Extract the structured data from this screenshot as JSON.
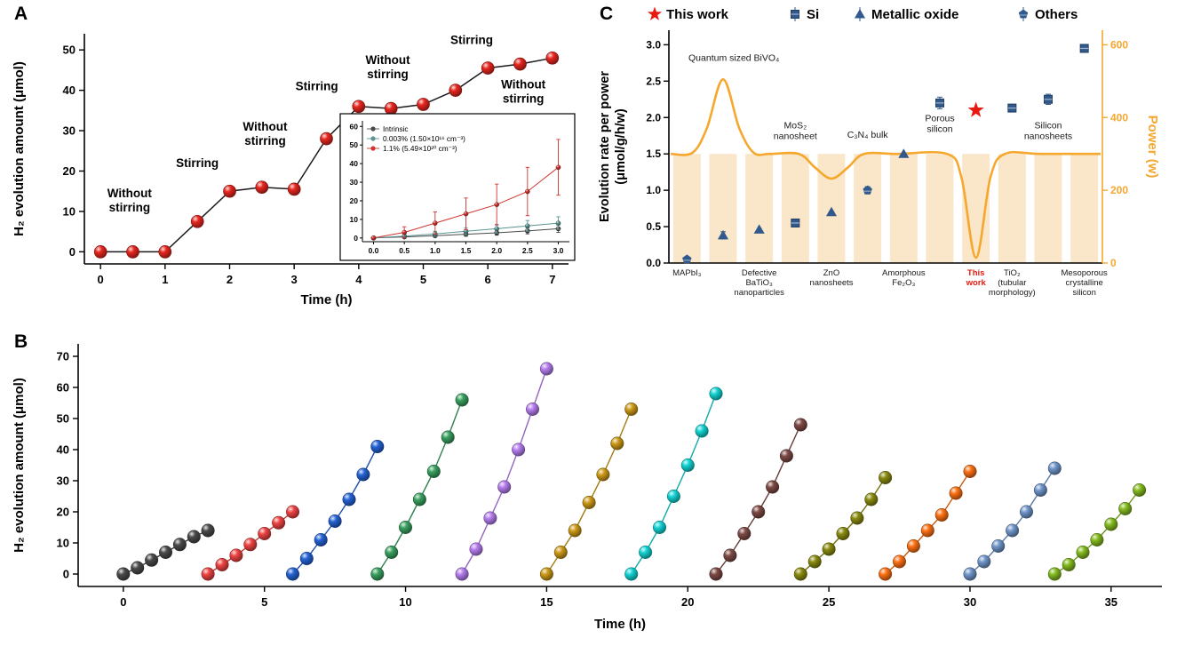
{
  "page": {
    "background": "#ffffff"
  },
  "chart_data": [
    {
      "panel_label": "A",
      "type": "line",
      "xlabel": "Time (h)",
      "ylabel": "H₂ evolution amount (μmol)",
      "xlim": [
        -0.25,
        7.25
      ],
      "ylim": [
        -3,
        54
      ],
      "xticks": [
        "0",
        "1",
        "2",
        "3",
        "4",
        "5",
        "6",
        "7"
      ],
      "xtick_vals": [
        0,
        1,
        2,
        3,
        4,
        5,
        6,
        7
      ],
      "yticks": [
        "0",
        "10",
        "20",
        "30",
        "40",
        "50"
      ],
      "ytick_vals": [
        0,
        10,
        20,
        30,
        40,
        50
      ],
      "point_color": "#e8261f",
      "line_color": "#1a1a1a",
      "x": [
        0,
        0.5,
        1,
        1.5,
        2,
        2.5,
        3,
        3.5,
        4,
        4.5,
        5,
        5.5,
        6,
        6.5,
        7
      ],
      "y": [
        0,
        0,
        0,
        7.5,
        15,
        16,
        15.5,
        28,
        36,
        35.5,
        36.5,
        40,
        45.5,
        46.5,
        48
      ],
      "annotations": [
        {
          "text": "Without\nstirring",
          "x": 0.45,
          "y": 13.5
        },
        {
          "text": "Stirring",
          "x": 1.5,
          "y": 21
        },
        {
          "text": "Without\nstirring",
          "x": 2.55,
          "y": 30
        },
        {
          "text": "Stirring",
          "x": 3.35,
          "y": 40
        },
        {
          "text": "Without\nstirring",
          "x": 4.45,
          "y": 46.5
        },
        {
          "text": "Stirring",
          "x": 5.75,
          "y": 51.5
        },
        {
          "text": "Without\nstirring",
          "x": 6.55,
          "y": 40.5
        }
      ],
      "inset": {
        "xticks": [
          "0.0",
          "0.5",
          "1.0",
          "1.5",
          "2.0",
          "2.5",
          "3.0"
        ],
        "xtick_vals": [
          0,
          0.5,
          1,
          1.5,
          2,
          2.5,
          3
        ],
        "yticks": [
          "0",
          "10",
          "20",
          "30",
          "40",
          "50",
          "60"
        ],
        "ytick_vals": [
          0,
          10,
          20,
          30,
          40,
          50,
          60
        ],
        "xlim": [
          -0.18,
          3.18
        ],
        "ylim": [
          -2,
          63
        ],
        "series": [
          {
            "name": "Intrinsic",
            "color": "#4a4a4a",
            "x": [
              0,
              0.5,
              1,
              1.5,
              2,
              2.5,
              3
            ],
            "y": [
              0,
              0.6,
              1.2,
              2,
              2.8,
              3.8,
              5
            ],
            "err": [
              0.3,
              0.5,
              0.8,
              1,
              1.3,
              1.6,
              2
            ]
          },
          {
            "name": "0.003% (1.50×10¹⁶ cm⁻³)",
            "color": "#5b9493",
            "x": [
              0,
              0.5,
              1,
              1.5,
              2,
              2.5,
              3
            ],
            "y": [
              0,
              1,
              2.2,
              3.6,
              5,
              6.5,
              8
            ],
            "err": [
              0.4,
              0.9,
              1.4,
              1.9,
              2.4,
              2.9,
              3.4
            ]
          },
          {
            "name": "1.1% (5.49×10²⁰ cm⁻³)",
            "color": "#cf3430",
            "x": [
              0,
              0.5,
              1,
              1.5,
              2,
              2.5,
              3
            ],
            "y": [
              0,
              3,
              8,
              13,
              18,
              25,
              38
            ],
            "err": [
              0.6,
              3,
              6,
              8.5,
              11,
              13,
              15
            ]
          }
        ]
      }
    },
    {
      "panel_label": "B",
      "type": "line",
      "xlabel": "Time (h)",
      "ylabel": "H₂ evolution amount (μmol)",
      "xlim": [
        -1.6,
        36.8
      ],
      "ylim": [
        -4,
        74
      ],
      "xticks": [
        "0",
        "5",
        "10",
        "15",
        "20",
        "25",
        "30",
        "35"
      ],
      "xtick_vals": [
        0,
        5,
        10,
        15,
        20,
        25,
        30,
        35
      ],
      "yticks": [
        "0",
        "10",
        "20",
        "30",
        "40",
        "50",
        "60",
        "70"
      ],
      "ytick_vals": [
        0,
        10,
        20,
        30,
        40,
        50,
        60,
        70
      ],
      "series": [
        {
          "color": "#4a4a4a",
          "start": 0,
          "step": 0.5,
          "y": [
            0,
            2,
            4.5,
            7,
            9.5,
            12,
            14
          ]
        },
        {
          "color": "#f04343",
          "start": 3,
          "step": 0.5,
          "y": [
            0,
            3,
            6,
            9.5,
            13,
            16.5,
            20
          ]
        },
        {
          "color": "#2563d6",
          "start": 6,
          "step": 0.5,
          "y": [
            0,
            5,
            11,
            17,
            24,
            32,
            41
          ]
        },
        {
          "color": "#3aa160",
          "start": 9,
          "step": 0.5,
          "y": [
            0,
            7,
            15,
            24,
            33,
            44,
            56
          ]
        },
        {
          "color": "#b77ef0",
          "start": 12,
          "step": 0.5,
          "y": [
            0,
            8,
            18,
            28,
            40,
            53,
            66
          ]
        },
        {
          "color": "#cd9a18",
          "start": 15,
          "step": 0.5,
          "y": [
            0,
            7,
            14,
            23,
            32,
            42,
            53
          ]
        },
        {
          "color": "#12d4d4",
          "start": 18,
          "step": 0.5,
          "y": [
            0,
            7,
            15,
            25,
            35,
            46,
            58
          ]
        },
        {
          "color": "#7e4a45",
          "start": 21,
          "step": 0.5,
          "y": [
            0,
            6,
            13,
            20,
            28,
            38,
            48
          ]
        },
        {
          "color": "#8a8a10",
          "start": 24,
          "step": 0.5,
          "y": [
            0,
            4,
            8,
            13,
            18,
            24,
            31
          ]
        },
        {
          "color": "#fd7013",
          "start": 27,
          "step": 0.5,
          "y": [
            0,
            4,
            9,
            14,
            19,
            26,
            33
          ]
        },
        {
          "color": "#7096cb",
          "start": 30,
          "step": 0.5,
          "y": [
            0,
            4,
            9,
            14,
            20,
            27,
            34
          ]
        },
        {
          "color": "#84bb1f",
          "start": 33,
          "step": 0.5,
          "y": [
            0,
            3,
            7,
            11,
            16,
            21,
            27
          ]
        }
      ]
    },
    {
      "panel_label": "C",
      "type": "scatter",
      "ylabel_left": [
        "Evolution rate per power",
        "(μmol/g/h/w)"
      ],
      "ylabel_right": "Power (w)",
      "left_ticks": [
        "0.0",
        "0.5",
        "1.0",
        "1.5",
        "2.0",
        "2.5",
        "3.0"
      ],
      "left_tick_vals": [
        0,
        0.5,
        1,
        1.5,
        2,
        2.5,
        3
      ],
      "left_lim": [
        0,
        3.2
      ],
      "right_ticks": [
        "0",
        "200",
        "400",
        "600"
      ],
      "right_tick_vals": [
        0,
        200,
        400,
        600
      ],
      "right_lim": [
        0,
        640
      ],
      "marker_color": "#31598c",
      "star_color": "#e8190f",
      "power_color": "#f5a72e",
      "band_color": "#fae6c8",
      "band_power": 300,
      "n_categories": 12,
      "legend": [
        {
          "label": "This work",
          "marker": "star"
        },
        {
          "label": "Si",
          "marker": "square"
        },
        {
          "label": "Metallic oxide",
          "marker": "triangle"
        },
        {
          "label": "Others",
          "marker": "pentagon"
        }
      ],
      "points": [
        {
          "cat": 1,
          "value": 0.05,
          "marker": "pentagon"
        },
        {
          "cat": 2,
          "value": 0.38,
          "marker": "triangle",
          "err": 0.05
        },
        {
          "cat": 3,
          "value": 0.46,
          "marker": "triangle"
        },
        {
          "cat": 4,
          "value": 0.55,
          "marker": "square",
          "err": 0.05
        },
        {
          "cat": 5,
          "value": 0.7,
          "marker": "triangle"
        },
        {
          "cat": 6,
          "value": 1.0,
          "marker": "pentagon",
          "err": 0.05
        },
        {
          "cat": 7,
          "value": 1.5,
          "marker": "triangle"
        },
        {
          "cat": 8,
          "value": 2.2,
          "marker": "square",
          "err": 0.08
        },
        {
          "cat": 9,
          "value": 2.1,
          "marker": "star"
        },
        {
          "cat": 10,
          "value": 2.13,
          "marker": "square"
        },
        {
          "cat": 11,
          "value": 2.25,
          "marker": "square",
          "err": 0.07
        },
        {
          "cat": 12,
          "value": 2.95,
          "marker": "square"
        }
      ],
      "power_curve": [
        [
          0.55,
          300
        ],
        [
          1.15,
          303
        ],
        [
          1.55,
          370
        ],
        [
          2.0,
          505
        ],
        [
          2.45,
          370
        ],
        [
          2.85,
          303
        ],
        [
          3.3,
          300
        ],
        [
          4.1,
          300
        ],
        [
          4.55,
          262
        ],
        [
          5.0,
          232
        ],
        [
          5.45,
          262
        ],
        [
          5.9,
          300
        ],
        [
          6.8,
          300
        ],
        [
          8.2,
          300
        ],
        [
          8.6,
          235
        ],
        [
          9.0,
          15
        ],
        [
          9.4,
          235
        ],
        [
          9.8,
          300
        ],
        [
          10.8,
          300
        ],
        [
          12.45,
          300
        ]
      ],
      "category_labels": [
        {
          "cat": 1,
          "lines": [
            "MAPbI₃"
          ]
        },
        {
          "cat": 3,
          "lines": [
            "Defective",
            "BaTiO₃",
            "nanoparticles"
          ]
        },
        {
          "cat": 5,
          "lines": [
            "ZnO",
            "nanosheets"
          ]
        },
        {
          "cat": 7,
          "lines": [
            "Amorphous",
            "Fe₂O₃"
          ]
        },
        {
          "cat": 9,
          "lines": [
            "This",
            "work"
          ],
          "color": "#e8190f",
          "bold": true
        },
        {
          "cat": 10,
          "lines": [
            "TiO₂",
            "(tubular",
            "morphology)"
          ]
        },
        {
          "cat": 12,
          "lines": [
            "Mesoporous",
            "crystalline",
            "silicon"
          ]
        }
      ],
      "annotations": [
        {
          "lines": [
            "Quantum sized BiVO₄"
          ],
          "cat": 2.3,
          "value": 2.78
        },
        {
          "lines": [
            "MoS₂",
            "nanosheet"
          ],
          "cat": 4,
          "value": 1.85
        },
        {
          "lines": [
            "C₃N₄ bulk"
          ],
          "cat": 6,
          "value": 1.72
        },
        {
          "lines": [
            "Porous",
            "silicon"
          ],
          "cat": 8,
          "value": 1.95
        },
        {
          "lines": [
            "Silicon",
            "nanosheets"
          ],
          "cat": 11,
          "value": 1.85
        }
      ]
    }
  ]
}
